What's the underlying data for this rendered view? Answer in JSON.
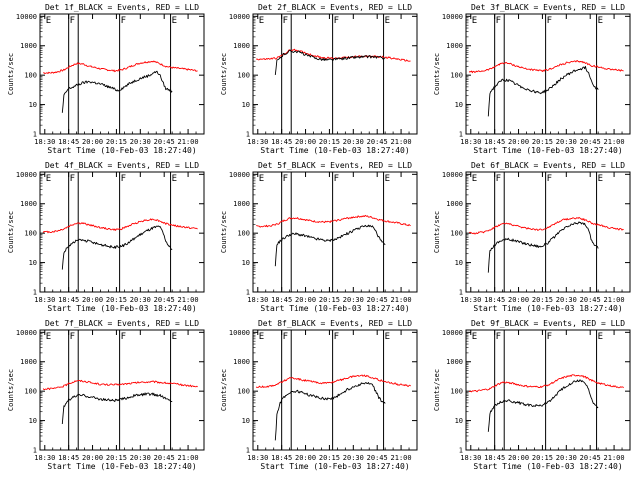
{
  "common": {
    "xlabel": "Start Time (10-Feb-03 18:27:40)",
    "ylabel": "Counts/sec",
    "xticks": [
      {
        "v": 0,
        "label": "18:30"
      },
      {
        "v": 15,
        "label": "18:45"
      },
      {
        "v": 30,
        "label": "20:00"
      },
      {
        "v": 45,
        "label": "20:15"
      },
      {
        "v": 60,
        "label": "20:30"
      },
      {
        "v": 75,
        "label": "20:45"
      },
      {
        "v": 90,
        "label": "21:00"
      }
    ],
    "yticks": [
      {
        "v": 1,
        "label": "1"
      },
      {
        "v": 10,
        "label": "10"
      },
      {
        "v": 100,
        "label": "100"
      },
      {
        "v": 1000,
        "label": "1000"
      },
      {
        "v": 10000,
        "label": "10000"
      }
    ],
    "xlim": [
      -3,
      100
    ],
    "ylim": [
      1,
      12000
    ],
    "yscale": "log",
    "vlines": [
      15,
      21,
      47,
      79
    ],
    "flags": [
      {
        "x": 0,
        "label": "E"
      },
      {
        "x": 15,
        "label": "F"
      },
      {
        "x": 47,
        "label": "F"
      },
      {
        "x": 79,
        "label": "E"
      }
    ],
    "colors": {
      "events": "#000000",
      "lld": "#ff0000",
      "axes": "#000000"
    }
  },
  "chart_data": [
    {
      "type": "line",
      "title": "Det 1f_BLACK = Events, RED = LLD",
      "yscale": "log",
      "ylim": [
        1,
        12000
      ],
      "series": [
        {
          "name": "Events",
          "color": "#000000",
          "x": [
            11,
            12,
            14,
            15,
            17,
            20,
            24,
            28,
            32,
            36,
            40,
            43,
            46,
            50,
            54,
            58,
            62,
            66,
            68,
            70,
            72,
            74,
            75,
            76,
            78,
            80
          ],
          "values": [
            5,
            20,
            30,
            35,
            38,
            45,
            55,
            60,
            55,
            48,
            40,
            35,
            30,
            40,
            55,
            70,
            85,
            100,
            120,
            130,
            110,
            60,
            45,
            35,
            32,
            28
          ]
        },
        {
          "name": "LLD",
          "color": "#ff0000",
          "x": [
            -1,
            4,
            8,
            12,
            16,
            20,
            24,
            28,
            32,
            36,
            40,
            44,
            48,
            52,
            56,
            60,
            64,
            68,
            72,
            76,
            80,
            84,
            88,
            92,
            96
          ],
          "values": [
            120,
            120,
            130,
            150,
            200,
            250,
            240,
            200,
            180,
            160,
            150,
            140,
            150,
            180,
            220,
            260,
            280,
            300,
            250,
            200,
            180,
            170,
            160,
            150,
            140
          ]
        }
      ]
    },
    {
      "type": "line",
      "title": "Det 2f_BLACK = Events, RED = LLD",
      "yscale": "log",
      "ylim": [
        1,
        12000
      ],
      "series": [
        {
          "name": "Events",
          "color": "#000000",
          "x": [
            11,
            12,
            14,
            16,
            20,
            24,
            28,
            32,
            36,
            40,
            44,
            48,
            52,
            56,
            60,
            64,
            68,
            72,
            76,
            80
          ],
          "values": [
            100,
            300,
            380,
            500,
            650,
            650,
            550,
            450,
            380,
            350,
            330,
            340,
            360,
            380,
            400,
            410,
            420,
            420,
            400,
            380
          ]
        },
        {
          "name": "LLD",
          "color": "#ff0000",
          "x": [
            -1,
            4,
            8,
            12,
            16,
            20,
            24,
            28,
            32,
            36,
            40,
            44,
            48,
            52,
            56,
            60,
            64,
            68,
            72,
            76,
            80,
            84,
            88,
            92,
            96
          ],
          "values": [
            350,
            350,
            360,
            380,
            500,
            700,
            720,
            620,
            520,
            450,
            400,
            380,
            380,
            390,
            400,
            420,
            430,
            440,
            430,
            420,
            410,
            380,
            350,
            320,
            300
          ]
        }
      ]
    },
    {
      "type": "line",
      "title": "Det 3f_BLACK = Events, RED = LLD",
      "yscale": "log",
      "ylim": [
        1,
        12000
      ],
      "series": [
        {
          "name": "Events",
          "color": "#000000",
          "x": [
            11,
            12,
            14,
            16,
            20,
            24,
            28,
            32,
            36,
            40,
            44,
            48,
            52,
            56,
            60,
            64,
            68,
            72,
            74,
            76,
            78,
            80
          ],
          "values": [
            4,
            25,
            35,
            45,
            70,
            65,
            50,
            40,
            32,
            28,
            25,
            30,
            45,
            70,
            100,
            130,
            160,
            180,
            120,
            60,
            40,
            32
          ]
        },
        {
          "name": "LLD",
          "color": "#ff0000",
          "x": [
            -1,
            4,
            8,
            12,
            16,
            20,
            24,
            28,
            32,
            36,
            40,
            44,
            48,
            52,
            56,
            60,
            64,
            68,
            72,
            76,
            80,
            84,
            88,
            92,
            96
          ],
          "values": [
            130,
            130,
            140,
            160,
            210,
            260,
            250,
            210,
            180,
            160,
            150,
            140,
            150,
            180,
            220,
            260,
            280,
            300,
            260,
            210,
            190,
            170,
            160,
            150,
            140
          ]
        }
      ]
    },
    {
      "type": "line",
      "title": "Det 4f_BLACK = Events, RED = LLD",
      "yscale": "log",
      "ylim": [
        1,
        12000
      ],
      "series": [
        {
          "name": "Events",
          "color": "#000000",
          "x": [
            11,
            12,
            14,
            16,
            20,
            24,
            28,
            32,
            36,
            40,
            44,
            48,
            52,
            56,
            60,
            64,
            68,
            72,
            74,
            76,
            78,
            80
          ],
          "values": [
            6,
            22,
            32,
            40,
            55,
            58,
            52,
            45,
            40,
            36,
            33,
            35,
            45,
            65,
            90,
            120,
            150,
            170,
            110,
            55,
            35,
            28
          ]
        },
        {
          "name": "LLD",
          "color": "#ff0000",
          "x": [
            -1,
            4,
            8,
            12,
            16,
            20,
            24,
            28,
            32,
            36,
            40,
            44,
            48,
            52,
            56,
            60,
            64,
            68,
            72,
            76,
            80,
            84,
            88,
            92,
            96
          ],
          "values": [
            110,
            110,
            120,
            140,
            180,
            220,
            215,
            190,
            170,
            150,
            140,
            130,
            140,
            170,
            210,
            250,
            280,
            300,
            260,
            210,
            190,
            170,
            160,
            150,
            140
          ]
        }
      ]
    },
    {
      "type": "line",
      "title": "Det 5f_BLACK = Events, RED = LLD",
      "yscale": "log",
      "ylim": [
        1,
        12000
      ],
      "series": [
        {
          "name": "Events",
          "color": "#000000",
          "x": [
            11,
            12,
            14,
            16,
            20,
            24,
            28,
            32,
            36,
            40,
            44,
            48,
            52,
            56,
            60,
            64,
            68,
            72,
            74,
            76,
            78,
            80
          ],
          "values": [
            8,
            40,
            55,
            65,
            90,
            95,
            85,
            75,
            65,
            60,
            55,
            60,
            75,
            95,
            120,
            150,
            180,
            170,
            120,
            70,
            50,
            40
          ]
        },
        {
          "name": "LLD",
          "color": "#ff0000",
          "x": [
            -1,
            4,
            8,
            12,
            16,
            20,
            24,
            28,
            32,
            36,
            40,
            44,
            48,
            52,
            56,
            60,
            64,
            68,
            72,
            76,
            80,
            84,
            88,
            92,
            96
          ],
          "values": [
            170,
            170,
            180,
            200,
            260,
            320,
            330,
            300,
            270,
            250,
            240,
            240,
            260,
            290,
            320,
            350,
            370,
            380,
            340,
            290,
            260,
            240,
            220,
            200,
            180
          ]
        }
      ]
    },
    {
      "type": "line",
      "title": "Det 6f_BLACK = Events, RED = LLD",
      "yscale": "log",
      "ylim": [
        1,
        12000
      ],
      "series": [
        {
          "name": "Events",
          "color": "#000000",
          "x": [
            11,
            12,
            14,
            16,
            20,
            24,
            28,
            32,
            36,
            40,
            44,
            48,
            52,
            56,
            60,
            64,
            68,
            72,
            74,
            76,
            78,
            80
          ],
          "values": [
            5,
            25,
            35,
            45,
            60,
            62,
            55,
            48,
            42,
            38,
            35,
            45,
            70,
            110,
            160,
            200,
            230,
            200,
            120,
            55,
            38,
            30
          ]
        },
        {
          "name": "LLD",
          "color": "#ff0000",
          "x": [
            -1,
            4,
            8,
            12,
            16,
            20,
            24,
            28,
            32,
            36,
            40,
            44,
            48,
            52,
            56,
            60,
            64,
            68,
            72,
            76,
            80,
            84,
            88,
            92,
            96
          ],
          "values": [
            100,
            100,
            110,
            130,
            170,
            210,
            210,
            180,
            160,
            145,
            135,
            130,
            150,
            200,
            260,
            300,
            320,
            330,
            280,
            220,
            190,
            170,
            150,
            140,
            130
          ]
        }
      ]
    },
    {
      "type": "line",
      "title": "Det 7f_BLACK = Events, RED = LLD",
      "yscale": "log",
      "ylim": [
        1,
        12000
      ],
      "series": [
        {
          "name": "Events",
          "color": "#000000",
          "x": [
            11,
            12,
            14,
            16,
            20,
            24,
            28,
            32,
            36,
            40,
            44,
            48,
            52,
            56,
            60,
            64,
            68,
            72,
            74,
            76,
            78,
            80
          ],
          "values": [
            7,
            30,
            45,
            55,
            70,
            72,
            65,
            58,
            52,
            50,
            48,
            52,
            60,
            70,
            75,
            80,
            78,
            72,
            65,
            55,
            50,
            45
          ]
        },
        {
          "name": "LLD",
          "color": "#ff0000",
          "x": [
            -1,
            4,
            8,
            12,
            16,
            20,
            24,
            28,
            32,
            36,
            40,
            44,
            48,
            52,
            56,
            60,
            64,
            68,
            72,
            76,
            80,
            84,
            88,
            92,
            96
          ],
          "values": [
            120,
            120,
            130,
            150,
            190,
            230,
            220,
            200,
            180,
            170,
            165,
            165,
            170,
            180,
            190,
            200,
            205,
            210,
            200,
            190,
            180,
            170,
            160,
            150,
            140
          ]
        }
      ]
    },
    {
      "type": "line",
      "title": "Det 8f_BLACK = Events, RED = LLD",
      "yscale": "log",
      "ylim": [
        1,
        12000
      ],
      "series": [
        {
          "name": "Events",
          "color": "#000000",
          "x": [
            11,
            12,
            14,
            16,
            20,
            24,
            28,
            32,
            36,
            40,
            44,
            48,
            52,
            56,
            60,
            64,
            68,
            72,
            74,
            76,
            78,
            80
          ],
          "values": [
            2,
            15,
            40,
            60,
            90,
            100,
            90,
            75,
            65,
            58,
            55,
            60,
            80,
            110,
            140,
            170,
            190,
            160,
            100,
            60,
            45,
            38
          ]
        },
        {
          "name": "LLD",
          "color": "#ff0000",
          "x": [
            -1,
            4,
            8,
            12,
            16,
            20,
            24,
            28,
            32,
            36,
            40,
            44,
            48,
            52,
            56,
            60,
            64,
            68,
            72,
            76,
            80,
            84,
            88,
            92,
            96
          ],
          "values": [
            140,
            140,
            150,
            170,
            220,
            270,
            270,
            240,
            220,
            200,
            190,
            190,
            210,
            240,
            280,
            320,
            340,
            330,
            290,
            240,
            210,
            190,
            170,
            160,
            150
          ]
        }
      ]
    },
    {
      "type": "line",
      "title": "Det 9f_BLACK = Events, RED = LLD",
      "yscale": "log",
      "ylim": [
        1,
        12000
      ],
      "series": [
        {
          "name": "Events",
          "color": "#000000",
          "x": [
            11,
            12,
            14,
            16,
            20,
            24,
            28,
            32,
            36,
            40,
            44,
            48,
            52,
            56,
            60,
            64,
            68,
            72,
            74,
            76,
            78,
            80
          ],
          "values": [
            4,
            18,
            28,
            35,
            45,
            48,
            42,
            38,
            34,
            32,
            32,
            40,
            60,
            100,
            150,
            200,
            230,
            190,
            110,
            50,
            35,
            28
          ]
        },
        {
          "name": "LLD",
          "color": "#ff0000",
          "x": [
            -1,
            4,
            8,
            12,
            16,
            20,
            24,
            28,
            32,
            36,
            40,
            44,
            48,
            52,
            56,
            60,
            64,
            68,
            72,
            76,
            80,
            84,
            88,
            92,
            96
          ],
          "values": [
            100,
            100,
            110,
            120,
            160,
            200,
            195,
            175,
            155,
            145,
            140,
            140,
            160,
            200,
            260,
            310,
            340,
            350,
            300,
            230,
            190,
            170,
            150,
            140,
            130
          ]
        }
      ]
    }
  ]
}
